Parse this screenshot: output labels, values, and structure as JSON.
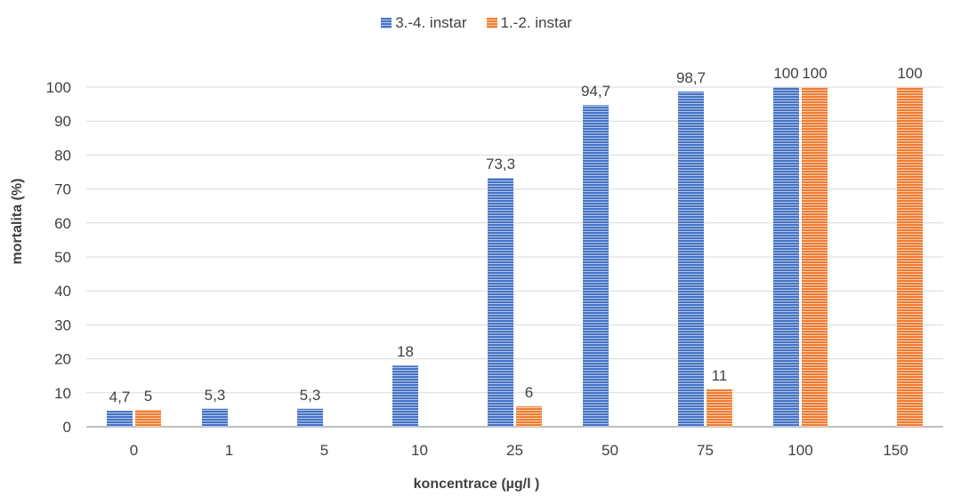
{
  "chart_data": {
    "type": "bar",
    "categories": [
      "0",
      "1",
      "5",
      "10",
      "25",
      "50",
      "75",
      "100",
      "150"
    ],
    "series": [
      {
        "name": "3.-4. instar",
        "values": [
          4.7,
          5.3,
          5.3,
          18,
          73.3,
          94.7,
          98.7,
          100,
          null
        ],
        "labels": [
          "4,7",
          "5,3",
          "5,3",
          "18",
          "73,3",
          "94,7",
          "98,7",
          "100",
          ""
        ],
        "color": "#4472C4"
      },
      {
        "name": "1.-2. instar",
        "values": [
          5,
          null,
          null,
          null,
          6,
          null,
          11,
          100,
          100
        ],
        "labels": [
          "5",
          "",
          "",
          "",
          "6",
          "",
          "11",
          "100",
          "100"
        ],
        "color": "#ED7D31"
      }
    ],
    "xlabel": "koncentrace (µg/l )",
    "ylabel": "mortalita (%)",
    "ylim": [
      0,
      100
    ],
    "yticks": [
      0,
      10,
      20,
      30,
      40,
      50,
      60,
      70,
      80,
      90,
      100
    ],
    "grid": true,
    "legend": "top"
  }
}
